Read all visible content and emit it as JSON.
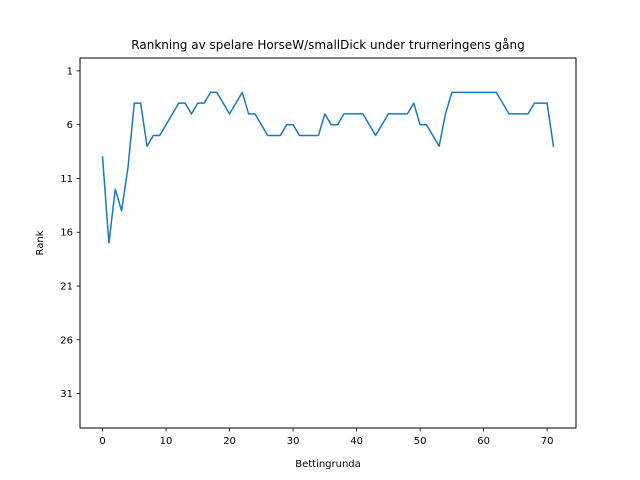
{
  "chart_data": {
    "type": "line",
    "title": "Rankning av spelare HorseW/smallDick under trurneringens gång",
    "xlabel": "Bettingrunda",
    "ylabel": "Rank",
    "xlim": [
      -3.55,
      74.55
    ],
    "ylim": [
      34.2,
      -0.2
    ],
    "y_inverted": true,
    "x_ticks": [
      0,
      10,
      20,
      30,
      40,
      50,
      60,
      70
    ],
    "y_ticks": [
      1,
      6,
      11,
      16,
      21,
      26,
      31
    ],
    "grid": false,
    "line_color": "#1f77b4",
    "series": [
      {
        "x": [
          0,
          1,
          2,
          3,
          4,
          5,
          6,
          7,
          8,
          9,
          10,
          11,
          12,
          13,
          14,
          15,
          16,
          17,
          18,
          19,
          20,
          21,
          22,
          23,
          24,
          25,
          26,
          27,
          28,
          29,
          30,
          31,
          32,
          33,
          34,
          35,
          36,
          37,
          38,
          39,
          40,
          41,
          42,
          43,
          44,
          45,
          46,
          47,
          48,
          49,
          50,
          51,
          52,
          53,
          54,
          55,
          56,
          57,
          58,
          59,
          60,
          61,
          62,
          63,
          64,
          65,
          66,
          67,
          68,
          69,
          70,
          71
        ],
        "values": [
          9,
          17,
          12,
          14,
          10,
          4,
          4,
          8,
          7,
          7,
          6,
          5,
          4,
          4,
          5,
          4,
          4,
          3,
          3,
          4,
          5,
          4,
          3,
          5,
          5,
          6,
          7,
          7,
          7,
          6,
          6,
          7,
          7,
          7,
          7,
          5,
          6,
          6,
          5,
          5,
          5,
          5,
          6,
          7,
          6,
          5,
          5,
          5,
          5,
          4,
          6,
          6,
          7,
          8,
          5,
          3,
          3,
          3,
          3,
          3,
          3,
          3,
          3,
          4,
          5,
          5,
          5,
          5,
          4,
          4,
          4,
          8
        ]
      }
    ]
  }
}
